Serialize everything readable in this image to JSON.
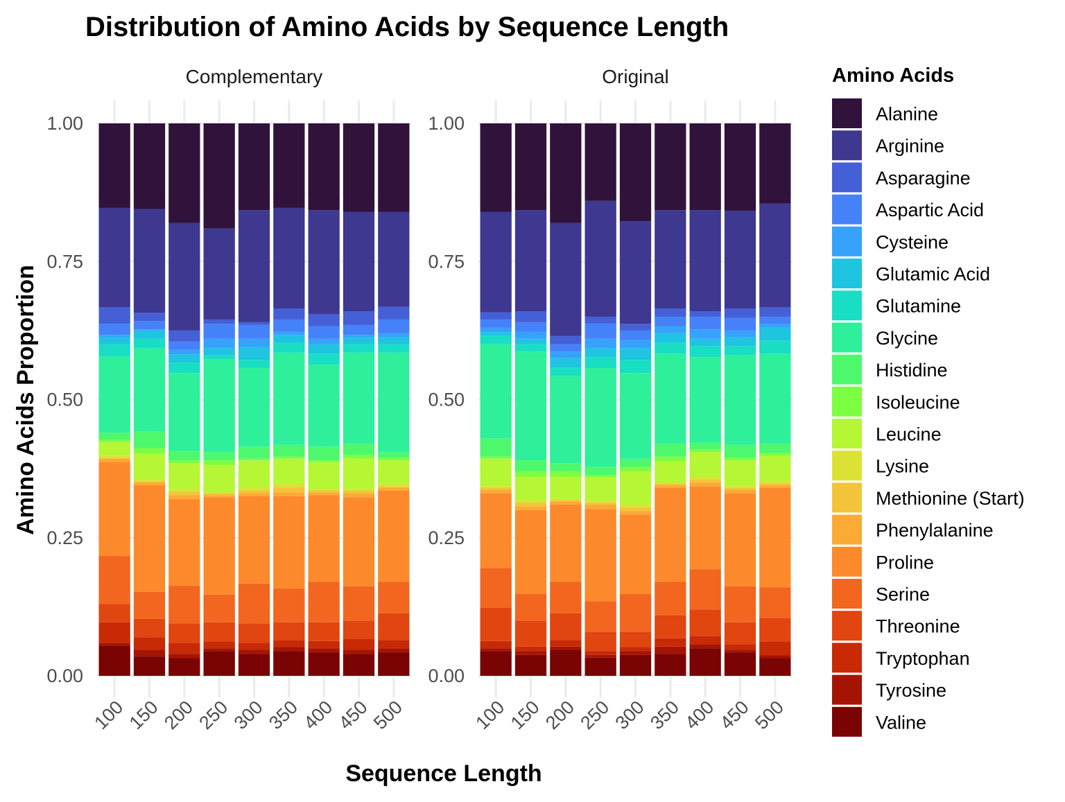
{
  "chart_data": {
    "type": "bar",
    "stacked": "proportion",
    "title": "Distribution of Amino Acids by Sequence Length",
    "xlabel": "Sequence Length",
    "ylabel": "Amino Acids Proportion",
    "ylim": [
      0,
      1
    ],
    "y_ticks": [
      "0.00",
      "0.25",
      "0.50",
      "0.75",
      "1.00"
    ],
    "categories": [
      "100",
      "150",
      "200",
      "250",
      "300",
      "350",
      "400",
      "450",
      "500"
    ],
    "grid": true,
    "legend": {
      "title": "Amino Acids",
      "position": "right"
    },
    "series": [
      {
        "name": "Alanine",
        "color": "#30123b"
      },
      {
        "name": "Arginine",
        "color": "#3e3891"
      },
      {
        "name": "Asparagine",
        "color": "#4560d6"
      },
      {
        "name": "Aspartic Acid",
        "color": "#4582f9"
      },
      {
        "name": "Cysteine",
        "color": "#37a2fc"
      },
      {
        "name": "Glutamic Acid",
        "color": "#1fc4e1"
      },
      {
        "name": "Glutamine",
        "color": "#18dec4"
      },
      {
        "name": "Glycine",
        "color": "#2ef09a"
      },
      {
        "name": "Histidine",
        "color": "#4ef86c"
      },
      {
        "name": "Isoleucine",
        "color": "#7cfe41"
      },
      {
        "name": "Leucine",
        "color": "#b6f735"
      },
      {
        "name": "Lysine",
        "color": "#dce235"
      },
      {
        "name": "Methionine (Start)",
        "color": "#f3c43a"
      },
      {
        "name": "Phenylalanine",
        "color": "#fbaa36"
      },
      {
        "name": "Proline",
        "color": "#fc8a2c"
      },
      {
        "name": "Serine",
        "color": "#f2661f"
      },
      {
        "name": "Threonine",
        "color": "#e14510"
      },
      {
        "name": "Tryptophan",
        "color": "#c72a05"
      },
      {
        "name": "Tyrosine",
        "color": "#a51402"
      },
      {
        "name": "Valine",
        "color": "#7a0403"
      }
    ],
    "facets": [
      {
        "label": "Complementary",
        "stacks": [
          {
            "x": "100",
            "tops": {
              "Valine": 0.055,
              "Tyrosine": 0.06,
              "Tryptophan": 0.097,
              "Threonine": 0.13,
              "Serine": 0.217,
              "Proline": 0.387,
              "Phenylalanine": 0.393,
              "Methionine (Start)": 0.395,
              "Lysine": 0.398,
              "Leucine": 0.423,
              "Isoleucine": 0.427,
              "Histidine": 0.44,
              "Glycine": 0.578,
              "Glutamine": 0.6,
              "Glutamic Acid": 0.613,
              "Cysteine": 0.617,
              "Aspartic Acid": 0.637,
              "Asparagine": 0.667,
              "Arginine": 0.847,
              "Alanine": 1.0
            }
          },
          {
            "x": "150",
            "tops": {
              "Valine": 0.035,
              "Tyrosine": 0.047,
              "Tryptophan": 0.07,
              "Threonine": 0.103,
              "Serine": 0.152,
              "Proline": 0.345,
              "Phenylalanine": 0.35,
              "Methionine (Start)": 0.352,
              "Lysine": 0.355,
              "Leucine": 0.402,
              "Isoleucine": 0.412,
              "Histidine": 0.442,
              "Glycine": 0.593,
              "Glutamine": 0.61,
              "Glutamic Acid": 0.625,
              "Cysteine": 0.627,
              "Aspartic Acid": 0.642,
              "Asparagine": 0.657,
              "Arginine": 0.845,
              "Alanine": 1.0
            }
          },
          {
            "x": "200",
            "tops": {
              "Valine": 0.032,
              "Tyrosine": 0.04,
              "Tryptophan": 0.06,
              "Threonine": 0.095,
              "Serine": 0.163,
              "Proline": 0.32,
              "Phenylalanine": 0.327,
              "Methionine (Start)": 0.333,
              "Lysine": 0.338,
              "Leucine": 0.385,
              "Isoleucine": 0.39,
              "Histidine": 0.407,
              "Glycine": 0.548,
              "Glutamine": 0.567,
              "Glutamic Acid": 0.582,
              "Cysteine": 0.59,
              "Aspartic Acid": 0.605,
              "Asparagine": 0.625,
              "Arginine": 0.82,
              "Alanine": 1.0
            }
          },
          {
            "x": "250",
            "tops": {
              "Valine": 0.045,
              "Tyrosine": 0.05,
              "Tryptophan": 0.062,
              "Threonine": 0.097,
              "Serine": 0.147,
              "Proline": 0.323,
              "Phenylalanine": 0.327,
              "Methionine (Start)": 0.33,
              "Lysine": 0.332,
              "Leucine": 0.382,
              "Isoleucine": 0.39,
              "Histidine": 0.405,
              "Glycine": 0.573,
              "Glutamine": 0.58,
              "Glutamic Acid": 0.593,
              "Cysteine": 0.61,
              "Aspartic Acid": 0.637,
              "Asparagine": 0.645,
              "Arginine": 0.81,
              "Alanine": 1.0
            }
          },
          {
            "x": "300",
            "tops": {
              "Valine": 0.04,
              "Tyrosine": 0.047,
              "Tryptophan": 0.06,
              "Threonine": 0.095,
              "Serine": 0.167,
              "Proline": 0.325,
              "Phenylalanine": 0.33,
              "Methionine (Start)": 0.335,
              "Lysine": 0.34,
              "Leucine": 0.39,
              "Isoleucine": 0.393,
              "Histidine": 0.415,
              "Glycine": 0.557,
              "Glutamine": 0.572,
              "Glutamic Acid": 0.595,
              "Cysteine": 0.61,
              "Aspartic Acid": 0.635,
              "Asparagine": 0.64,
              "Arginine": 0.843,
              "Alanine": 1.0
            }
          },
          {
            "x": "350",
            "tops": {
              "Valine": 0.045,
              "Tyrosine": 0.052,
              "Tryptophan": 0.065,
              "Threonine": 0.097,
              "Serine": 0.158,
              "Proline": 0.325,
              "Phenylalanine": 0.332,
              "Methionine (Start)": 0.342,
              "Lysine": 0.348,
              "Leucine": 0.393,
              "Isoleucine": 0.397,
              "Histidine": 0.418,
              "Glycine": 0.585,
              "Glutamine": 0.603,
              "Glutamic Acid": 0.617,
              "Cysteine": 0.623,
              "Aspartic Acid": 0.645,
              "Asparagine": 0.665,
              "Arginine": 0.847,
              "Alanine": 1.0
            }
          },
          {
            "x": "400",
            "tops": {
              "Valine": 0.042,
              "Tyrosine": 0.05,
              "Tryptophan": 0.063,
              "Threonine": 0.097,
              "Serine": 0.17,
              "Proline": 0.327,
              "Phenylalanine": 0.332,
              "Methionine (Start)": 0.335,
              "Lysine": 0.338,
              "Leucine": 0.387,
              "Isoleucine": 0.39,
              "Histidine": 0.415,
              "Glycine": 0.563,
              "Glutamine": 0.583,
              "Glutamic Acid": 0.6,
              "Cysteine": 0.61,
              "Aspartic Acid": 0.633,
              "Asparagine": 0.655,
              "Arginine": 0.843,
              "Alanine": 1.0
            }
          },
          {
            "x": "450",
            "tops": {
              "Valine": 0.04,
              "Tyrosine": 0.047,
              "Tryptophan": 0.067,
              "Threonine": 0.1,
              "Serine": 0.162,
              "Proline": 0.323,
              "Phenylalanine": 0.33,
              "Methionine (Start)": 0.335,
              "Lysine": 0.338,
              "Leucine": 0.393,
              "Isoleucine": 0.4,
              "Histidine": 0.42,
              "Glycine": 0.585,
              "Glutamine": 0.6,
              "Glutamic Acid": 0.613,
              "Cysteine": 0.617,
              "Aspartic Acid": 0.635,
              "Asparagine": 0.66,
              "Arginine": 0.84,
              "Alanine": 1.0
            }
          },
          {
            "x": "500",
            "tops": {
              "Valine": 0.042,
              "Tyrosine": 0.05,
              "Tryptophan": 0.065,
              "Threonine": 0.113,
              "Serine": 0.17,
              "Proline": 0.335,
              "Phenylalanine": 0.34,
              "Methionine (Start)": 0.343,
              "Lysine": 0.347,
              "Leucine": 0.39,
              "Isoleucine": 0.395,
              "Histidine": 0.405,
              "Glycine": 0.585,
              "Glutamine": 0.6,
              "Glutamic Acid": 0.613,
              "Cysteine": 0.62,
              "Aspartic Acid": 0.645,
              "Asparagine": 0.668,
              "Arginine": 0.84,
              "Alanine": 1.0
            }
          }
        ]
      },
      {
        "label": "Original",
        "stacks": [
          {
            "x": "100",
            "tops": {
              "Valine": 0.045,
              "Tyrosine": 0.05,
              "Tryptophan": 0.063,
              "Threonine": 0.123,
              "Serine": 0.195,
              "Proline": 0.33,
              "Phenylalanine": 0.337,
              "Methionine (Start)": 0.34,
              "Lysine": 0.343,
              "Leucine": 0.393,
              "Isoleucine": 0.397,
              "Histidine": 0.43,
              "Glycine": 0.6,
              "Glutamine": 0.615,
              "Glutamic Acid": 0.622,
              "Cysteine": 0.63,
              "Aspartic Acid": 0.645,
              "Asparagine": 0.658,
              "Arginine": 0.84,
              "Alanine": 1.0
            }
          },
          {
            "x": "150",
            "tops": {
              "Valine": 0.038,
              "Tyrosine": 0.045,
              "Tryptophan": 0.053,
              "Threonine": 0.1,
              "Serine": 0.148,
              "Proline": 0.3,
              "Phenylalanine": 0.307,
              "Methionine (Start)": 0.313,
              "Lysine": 0.317,
              "Leucine": 0.36,
              "Isoleucine": 0.37,
              "Histidine": 0.39,
              "Glycine": 0.587,
              "Glutamine": 0.6,
              "Glutamic Acid": 0.61,
              "Cysteine": 0.623,
              "Aspartic Acid": 0.64,
              "Asparagine": 0.66,
              "Arginine": 0.843,
              "Alanine": 1.0
            }
          },
          {
            "x": "200",
            "tops": {
              "Valine": 0.047,
              "Tyrosine": 0.053,
              "Tryptophan": 0.065,
              "Threonine": 0.113,
              "Serine": 0.17,
              "Proline": 0.31,
              "Phenylalanine": 0.315,
              "Methionine (Start)": 0.318,
              "Lysine": 0.32,
              "Leucine": 0.36,
              "Isoleucine": 0.37,
              "Histidine": 0.385,
              "Glycine": 0.543,
              "Glutamine": 0.558,
              "Glutamic Acid": 0.575,
              "Cysteine": 0.587,
              "Aspartic Acid": 0.6,
              "Asparagine": 0.615,
              "Arginine": 0.82,
              "Alanine": 1.0
            }
          },
          {
            "x": "250",
            "tops": {
              "Valine": 0.033,
              "Tyrosine": 0.038,
              "Tryptophan": 0.045,
              "Threonine": 0.08,
              "Serine": 0.135,
              "Proline": 0.302,
              "Phenylalanine": 0.31,
              "Methionine (Start)": 0.313,
              "Lysine": 0.317,
              "Leucine": 0.36,
              "Isoleucine": 0.363,
              "Histidine": 0.378,
              "Glycine": 0.557,
              "Glutamine": 0.577,
              "Glutamic Acid": 0.593,
              "Cysteine": 0.61,
              "Aspartic Acid": 0.638,
              "Asparagine": 0.65,
              "Arginine": 0.86,
              "Alanine": 1.0
            }
          },
          {
            "x": "300",
            "tops": {
              "Valine": 0.038,
              "Tyrosine": 0.045,
              "Tryptophan": 0.052,
              "Threonine": 0.08,
              "Serine": 0.148,
              "Proline": 0.292,
              "Phenylalanine": 0.298,
              "Methionine (Start)": 0.305,
              "Lysine": 0.31,
              "Leucine": 0.37,
              "Isoleucine": 0.378,
              "Histidine": 0.393,
              "Glycine": 0.548,
              "Glutamine": 0.572,
              "Glutamic Acid": 0.593,
              "Cysteine": 0.608,
              "Aspartic Acid": 0.625,
              "Asparagine": 0.637,
              "Arginine": 0.823,
              "Alanine": 1.0
            }
          },
          {
            "x": "350",
            "tops": {
              "Valine": 0.04,
              "Tyrosine": 0.053,
              "Tryptophan": 0.068,
              "Threonine": 0.11,
              "Serine": 0.17,
              "Proline": 0.34,
              "Phenylalanine": 0.345,
              "Methionine (Start)": 0.348,
              "Lysine": 0.35,
              "Leucine": 0.388,
              "Isoleucine": 0.397,
              "Histidine": 0.42,
              "Glycine": 0.583,
              "Glutamine": 0.603,
              "Glutamic Acid": 0.62,
              "Cysteine": 0.633,
              "Aspartic Acid": 0.65,
              "Asparagine": 0.665,
              "Arginine": 0.843,
              "Alanine": 1.0
            }
          },
          {
            "x": "400",
            "tops": {
              "Valine": 0.05,
              "Tyrosine": 0.057,
              "Tryptophan": 0.072,
              "Threonine": 0.12,
              "Serine": 0.193,
              "Proline": 0.343,
              "Phenylalanine": 0.35,
              "Methionine (Start)": 0.355,
              "Lysine": 0.36,
              "Leucine": 0.405,
              "Isoleucine": 0.41,
              "Histidine": 0.422,
              "Glycine": 0.577,
              "Glutamine": 0.597,
              "Glutamic Acid": 0.61,
              "Cysteine": 0.627,
              "Aspartic Acid": 0.65,
              "Asparagine": 0.66,
              "Arginine": 0.843,
              "Alanine": 1.0
            }
          },
          {
            "x": "450",
            "tops": {
              "Valine": 0.042,
              "Tyrosine": 0.047,
              "Tryptophan": 0.057,
              "Threonine": 0.097,
              "Serine": 0.162,
              "Proline": 0.33,
              "Phenylalanine": 0.337,
              "Methionine (Start)": 0.34,
              "Lysine": 0.343,
              "Leucine": 0.39,
              "Isoleucine": 0.395,
              "Histidine": 0.418,
              "Glycine": 0.58,
              "Glutamine": 0.597,
              "Glutamic Acid": 0.613,
              "Cysteine": 0.625,
              "Aspartic Acid": 0.648,
              "Asparagine": 0.665,
              "Arginine": 0.842,
              "Alanine": 1.0
            }
          },
          {
            "x": "500",
            "tops": {
              "Valine": 0.032,
              "Tyrosine": 0.037,
              "Tryptophan": 0.062,
              "Threonine": 0.105,
              "Serine": 0.16,
              "Proline": 0.34,
              "Phenylalanine": 0.345,
              "Methionine (Start)": 0.348,
              "Lysine": 0.352,
              "Leucine": 0.398,
              "Isoleucine": 0.403,
              "Histidine": 0.42,
              "Glycine": 0.583,
              "Glutamine": 0.607,
              "Glutamic Acid": 0.63,
              "Cysteine": 0.637,
              "Aspartic Acid": 0.65,
              "Asparagine": 0.667,
              "Arginine": 0.855,
              "Alanine": 1.0
            }
          }
        ]
      }
    ]
  }
}
